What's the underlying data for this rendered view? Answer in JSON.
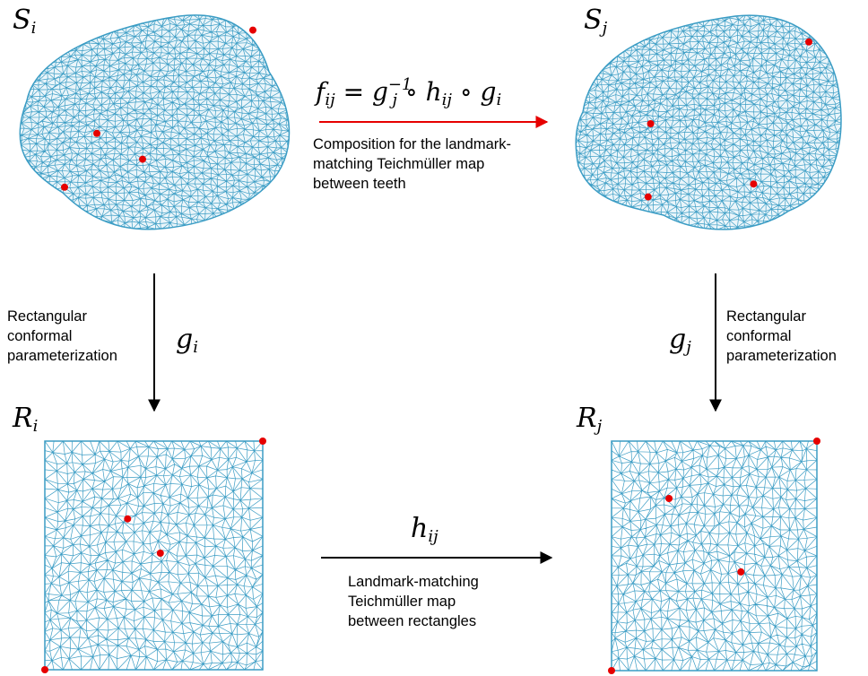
{
  "colors": {
    "mesh": "#3a9cc4",
    "landmark": "#e60000",
    "arrow_red": "#e60000",
    "arrow_black": "#000000"
  },
  "labels": {
    "S_i": {
      "base": "S",
      "sub": "i"
    },
    "S_j": {
      "base": "S",
      "sub": "j"
    },
    "R_i": {
      "base": "R",
      "sub": "i"
    },
    "R_j": {
      "base": "R",
      "sub": "j"
    },
    "g_i": {
      "base": "g",
      "sub": "i"
    },
    "g_j": {
      "base": "g",
      "sub": "j"
    },
    "h_ij": {
      "base": "h",
      "sub": "ij"
    },
    "f_ij": {
      "lhs": "f",
      "lhs_sub": "ij",
      "eq": " = ",
      "g": "g",
      "g_sub": "j",
      "g_sup": "−1",
      "o1": " ∘ ",
      "h": "h",
      "h_sub": "ij",
      "o2": " ∘ ",
      "gi": "g",
      "gi_sub": "i"
    }
  },
  "captions": {
    "composition": "Composition for the landmark-\nmatching Teichmüller map\nbetween teeth",
    "left_param": "Rectangular\nconformal\nparameterization",
    "right_param": "Rectangular\nconformal\nparameterization",
    "bottom_map": "Landmark-matching\nTeichmüller map\nbetween rectangles"
  },
  "landmarks": {
    "tooth_i": [
      [
        0.94,
        0.14
      ],
      [
        0.36,
        0.62
      ],
      [
        0.53,
        0.74
      ],
      [
        0.24,
        0.87
      ]
    ],
    "tooth_j": [
      [
        0.9,
        0.12
      ],
      [
        0.27,
        0.5
      ],
      [
        0.68,
        0.78
      ],
      [
        0.26,
        0.84
      ]
    ],
    "rect_i": [
      [
        1.0,
        0.0
      ],
      [
        0.38,
        0.34
      ],
      [
        0.53,
        0.49
      ],
      [
        0.0,
        1.0
      ]
    ],
    "rect_j": [
      [
        1.0,
        0.0
      ],
      [
        0.28,
        0.25
      ],
      [
        0.63,
        0.57
      ],
      [
        0.0,
        1.0
      ]
    ]
  }
}
